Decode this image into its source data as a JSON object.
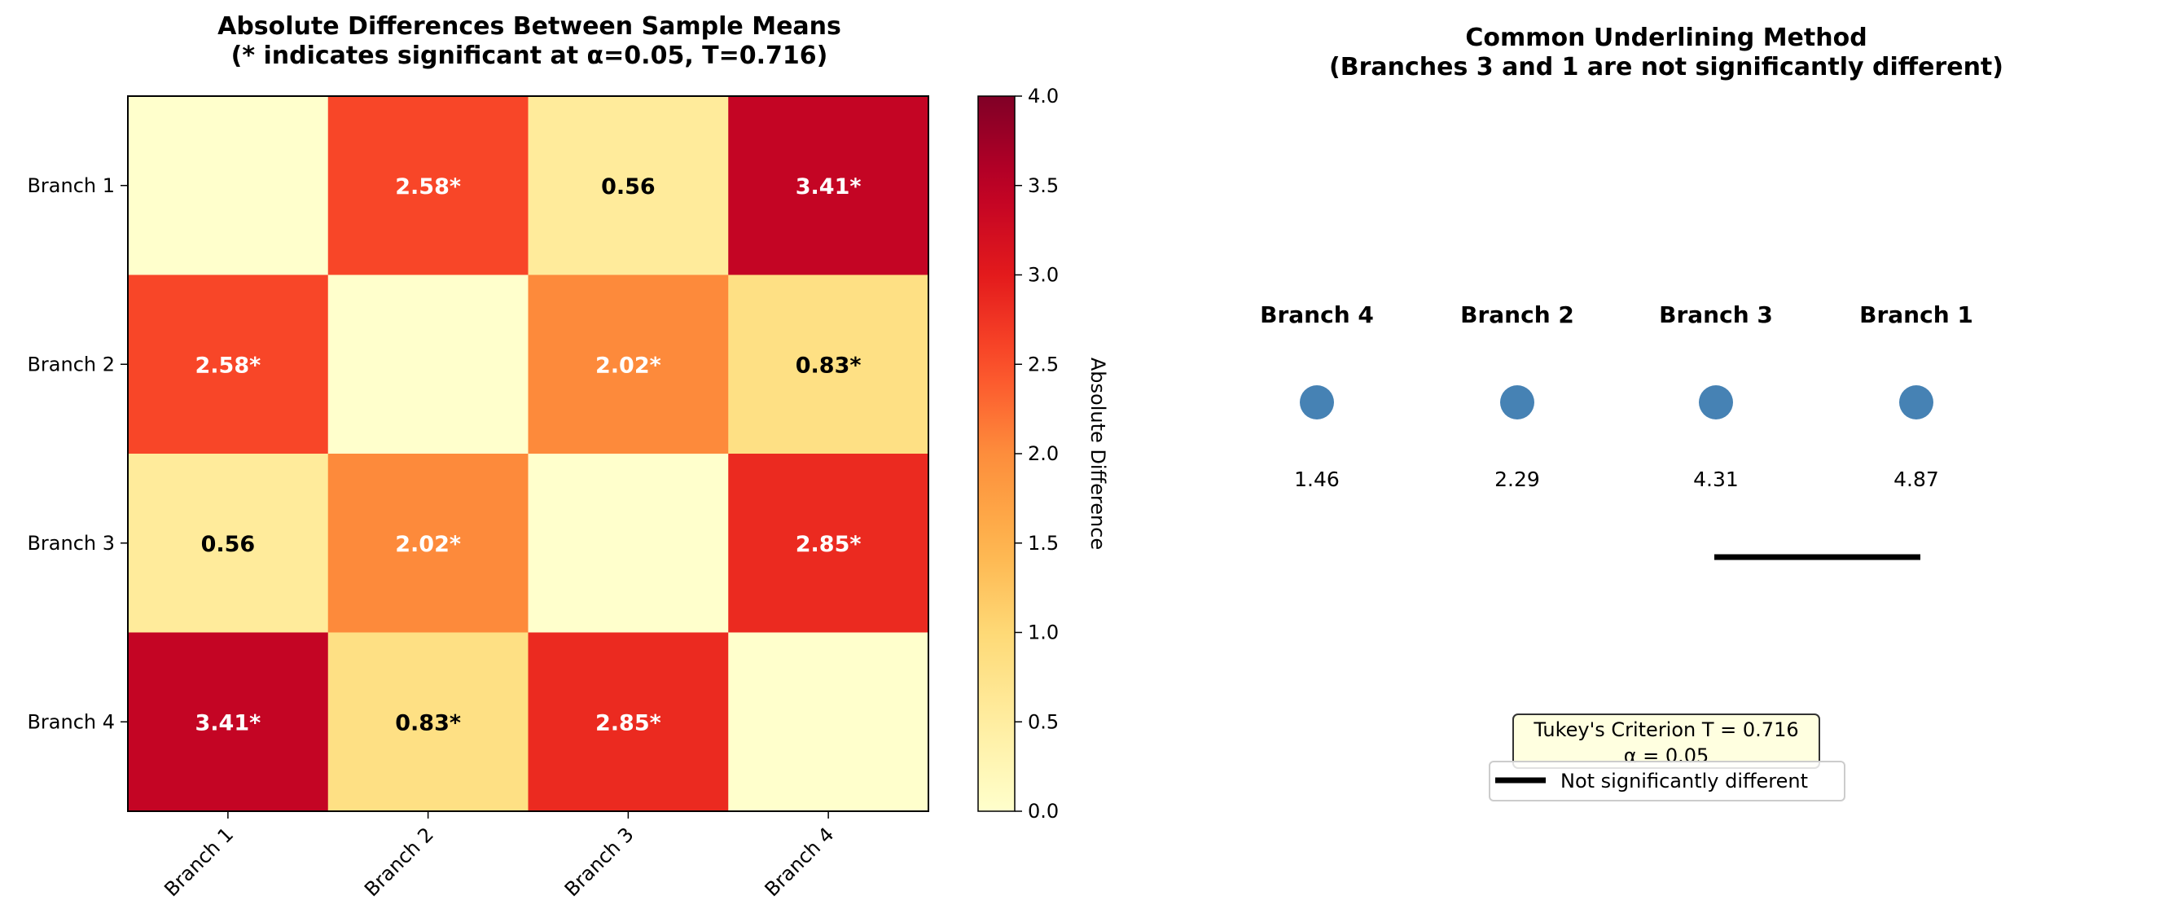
{
  "chart_data": [
    {
      "type": "heatmap",
      "title": "Absolute Differences Between Sample Means",
      "subtitle": "(* indicates significant at α=0.05, T=0.716)",
      "x_categories": [
        "Branch 1",
        "Branch 2",
        "Branch 3",
        "Branch 4"
      ],
      "y_categories": [
        "Branch 1",
        "Branch 2",
        "Branch 3",
        "Branch 4"
      ],
      "values": [
        [
          0,
          2.58,
          0.56,
          3.41
        ],
        [
          2.58,
          0,
          2.02,
          0.83
        ],
        [
          0.56,
          2.02,
          0,
          2.85
        ],
        [
          3.41,
          0.83,
          2.85,
          0
        ]
      ],
      "annotations": [
        [
          "",
          "2.58*",
          "0.56",
          "3.41*"
        ],
        [
          "2.58*",
          "",
          "2.02*",
          "0.83*"
        ],
        [
          "0.56",
          "2.02*",
          "",
          "2.85*"
        ],
        [
          "3.41*",
          "0.83*",
          "2.85*",
          ""
        ]
      ],
      "colormap": "YlOrRd",
      "colorbar": {
        "label": "Absolute Difference",
        "range": [
          0,
          4
        ],
        "ticks": [
          "0.0",
          "0.5",
          "1.0",
          "1.5",
          "2.0",
          "2.5",
          "3.0",
          "3.5",
          "4.0"
        ]
      }
    },
    {
      "type": "scatter",
      "title": "Common Underlining Method",
      "subtitle": "(Branches 3 and 1 are not significantly different)",
      "groups": [
        "Branch 4",
        "Branch 2",
        "Branch 3",
        "Branch 1"
      ],
      "means": [
        "1.46",
        "2.29",
        "4.31",
        "4.87"
      ],
      "marker_color": "#4682b4",
      "underlines": [
        [
          "Branch 3",
          "Branch 1"
        ]
      ],
      "info_box": [
        "Tukey's Criterion T = 0.716",
        "α = 0.05"
      ],
      "legend": {
        "label": "Not significantly different",
        "placement": "lower-center"
      }
    }
  ]
}
